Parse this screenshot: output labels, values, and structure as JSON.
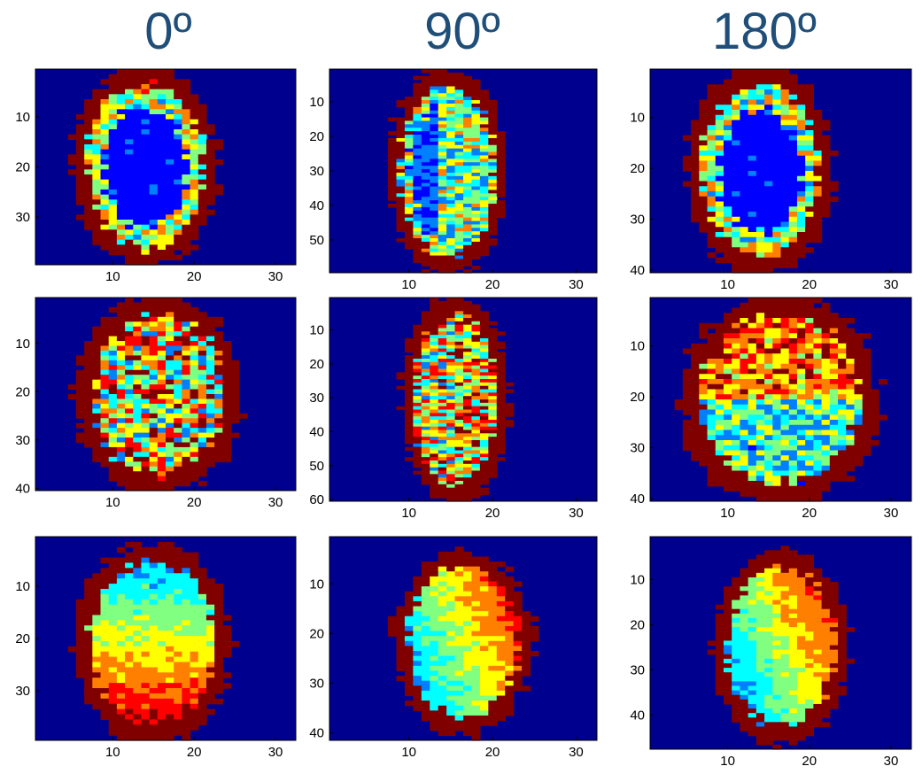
{
  "column_titles": [
    "0º",
    "90º",
    "180º"
  ],
  "colormap": {
    "name": "jet",
    "background": "#00008f",
    "tissue_rim": "#800000",
    "stops": [
      "#00008f",
      "#0000ff",
      "#0080ff",
      "#00ffff",
      "#80ff80",
      "#ffff00",
      "#ff8000",
      "#ff0000",
      "#800000"
    ]
  },
  "chart_data": [
    {
      "type": "heatmap",
      "row": 1,
      "column_title": "0º",
      "xlim": [
        0.5,
        32.5
      ],
      "ylim": [
        0.5,
        39.5
      ],
      "xticks": [
        "10",
        "20",
        "30"
      ],
      "yticks": [
        "10",
        "20",
        "30"
      ],
      "shape": "hollow-ring"
    },
    {
      "type": "heatmap",
      "row": 1,
      "column_title": "90º",
      "xlim": [
        0.5,
        32.5
      ],
      "ylim": [
        0.5,
        59.5
      ],
      "xticks": [
        "10",
        "20",
        "30"
      ],
      "yticks": [
        "10",
        "20",
        "30",
        "40",
        "50"
      ],
      "shape": "crescent"
    },
    {
      "type": "heatmap",
      "row": 1,
      "column_title": "180º",
      "xlim": [
        0.5,
        32.5
      ],
      "ylim": [
        0.5,
        40.5
      ],
      "xticks": [
        "10",
        "20",
        "30"
      ],
      "yticks": [
        "10",
        "20",
        "30",
        "40"
      ],
      "shape": "hollow-ring"
    },
    {
      "type": "heatmap",
      "row": 2,
      "column_title": "0º",
      "xlim": [
        0.5,
        32.5
      ],
      "ylim": [
        0.5,
        40.5
      ],
      "xticks": [
        "10",
        "20",
        "30"
      ],
      "yticks": [
        "10",
        "20",
        "30",
        "40"
      ],
      "shape": "filled"
    },
    {
      "type": "heatmap",
      "row": 2,
      "column_title": "90º",
      "xlim": [
        0.5,
        32.5
      ],
      "ylim": [
        0.5,
        60.5
      ],
      "xticks": [
        "10",
        "20",
        "30"
      ],
      "yticks": [
        "10",
        "20",
        "30",
        "40",
        "50",
        "60"
      ],
      "shape": "filled-narrow"
    },
    {
      "type": "heatmap",
      "row": 2,
      "column_title": "180º",
      "xlim": [
        0.5,
        32.5
      ],
      "ylim": [
        0.5,
        40.5
      ],
      "xticks": [
        "10",
        "20",
        "30"
      ],
      "yticks": [
        "10",
        "20",
        "30",
        "40"
      ],
      "shape": "filled-split"
    },
    {
      "type": "heatmap",
      "row": 3,
      "column_title": "0º",
      "xlim": [
        0.5,
        32.5
      ],
      "ylim": [
        0.5,
        39.5
      ],
      "xticks": [
        "10",
        "20",
        "30"
      ],
      "yticks": [
        "10",
        "20",
        "30"
      ],
      "shape": "gradient-blob"
    },
    {
      "type": "heatmap",
      "row": 3,
      "column_title": "90º",
      "xlim": [
        0.5,
        32.5
      ],
      "ylim": [
        0.5,
        41.5
      ],
      "xticks": [
        "10",
        "20",
        "30"
      ],
      "yticks": [
        "10",
        "20",
        "30",
        "40"
      ],
      "shape": "tilted-blob"
    },
    {
      "type": "heatmap",
      "row": 3,
      "column_title": "180º",
      "xlim": [
        0.5,
        32.5
      ],
      "ylim": [
        0.5,
        47.5
      ],
      "xticks": [
        "10",
        "20",
        "30"
      ],
      "yticks": [
        "10",
        "20",
        "30",
        "40"
      ],
      "shape": "tilted-blob"
    }
  ]
}
